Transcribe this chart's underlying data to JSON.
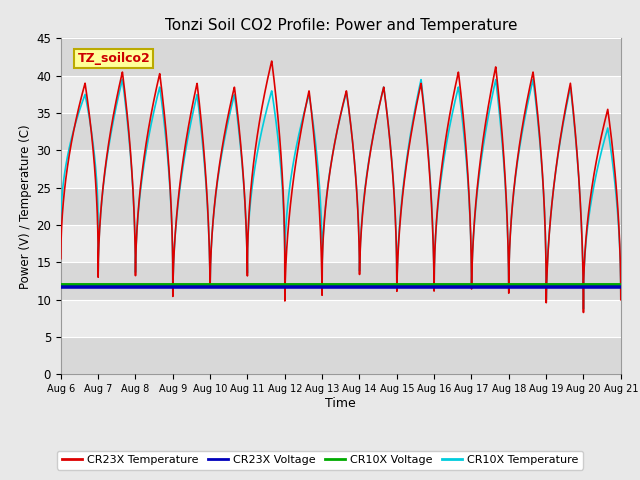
{
  "title": "Tonzi Soil CO2 Profile: Power and Temperature",
  "xlabel": "Time",
  "ylabel": "Power (V) / Temperature (C)",
  "ylim": [
    0,
    45
  ],
  "yticks": [
    0,
    5,
    10,
    15,
    20,
    25,
    30,
    35,
    40,
    45
  ],
  "x_tick_labels": [
    "Aug 6",
    "Aug 7",
    "Aug 8",
    "Aug 9",
    "Aug 10",
    "Aug 11",
    "Aug 12",
    "Aug 13",
    "Aug 14",
    "Aug 15",
    "Aug 16",
    "Aug 17",
    "Aug 18",
    "Aug 19",
    "Aug 20",
    "Aug 21"
  ],
  "fig_bg_color": "#e8e8e8",
  "plot_bg_color": "#e0e0e0",
  "band_light": "#ebebeb",
  "band_dark": "#d8d8d8",
  "cr23x_temp_color": "#dd0000",
  "cr23x_volt_color": "#0000bb",
  "cr10x_volt_color": "#00aa00",
  "cr10x_temp_color": "#00ccdd",
  "cr23x_volt_value": 11.7,
  "cr10x_volt_value": 12.0,
  "annotation_text": "TZ_soilco2",
  "annotation_bg": "#ffff99",
  "annotation_border": "#bbaa00",
  "n_cycles": 15,
  "temp_max_values": [
    39,
    40.5,
    40.3,
    39.0,
    38.5,
    42.0,
    38.0,
    38.0,
    38.5,
    39.0,
    40.5,
    41.2,
    40.5,
    39.0,
    35.5
  ],
  "temp_min_values": [
    15.5,
    12.5,
    12.5,
    9.5,
    11.0,
    14.5,
    8.5,
    13.0,
    12.0,
    9.5,
    11.5,
    9.5,
    11.5,
    7.5,
    10.0
  ],
  "cr10x_temp_max_values": [
    37.5,
    39.5,
    38.5,
    37.5,
    37.5,
    38.0,
    37.5,
    37.8,
    38.5,
    39.5,
    38.5,
    39.5,
    39.5,
    38.5,
    33.0
  ],
  "cr10x_temp_min_values": [
    20.0,
    13.0,
    13.0,
    10.0,
    11.5,
    15.0,
    15.0,
    13.5,
    12.5,
    10.0,
    12.0,
    10.0,
    12.0,
    8.0,
    10.5
  ]
}
